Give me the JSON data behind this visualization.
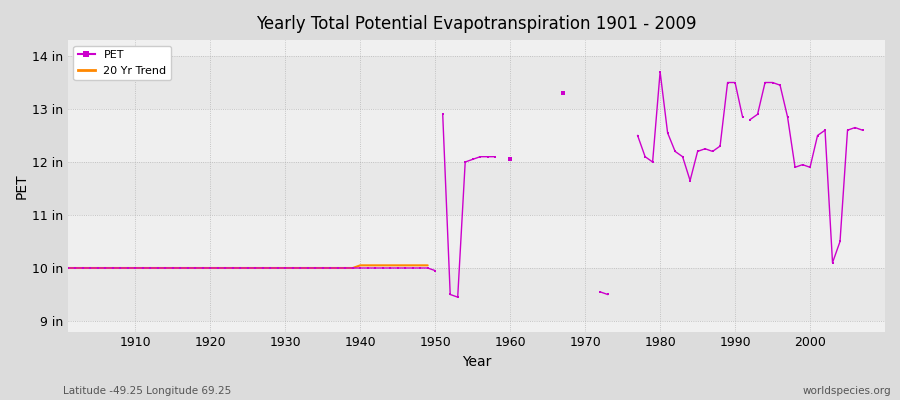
{
  "title": "Yearly Total Potential Evapotranspiration 1901 - 2009",
  "xlabel": "Year",
  "ylabel": "PET",
  "background_color": "#dcdcdc",
  "plot_bg_color": "#f0f0f0",
  "pet_color": "#cc00cc",
  "trend_color": "#ff8800",
  "xlim": [
    1901,
    2010
  ],
  "ylim": [
    8.8,
    14.3
  ],
  "yticks": [
    9,
    10,
    11,
    12,
    13,
    14
  ],
  "ytick_labels": [
    "9 in",
    "10 in",
    "11 in",
    "12 in",
    "13 in",
    "14 in"
  ],
  "xticks": [
    1910,
    1920,
    1930,
    1940,
    1950,
    1960,
    1970,
    1980,
    1990,
    2000
  ],
  "subtitle_lat_lon": "Latitude -49.25 Longitude 69.25",
  "watermark": "worldspecies.org",
  "band_colors": [
    "#e8e8e8",
    "#efefef",
    "#e8e8e8",
    "#efefef",
    "#e8e8e8"
  ],
  "pet_segments": [
    {
      "years": [
        1901,
        1902,
        1903,
        1904,
        1905,
        1906,
        1907,
        1908,
        1909,
        1910,
        1911,
        1912,
        1913,
        1914,
        1915,
        1916,
        1917,
        1918,
        1919,
        1920,
        1921,
        1922,
        1923,
        1924,
        1925,
        1926,
        1927,
        1928,
        1929,
        1930,
        1931,
        1932,
        1933,
        1934,
        1935,
        1936,
        1937,
        1938,
        1939,
        1940,
        1941,
        1942,
        1943,
        1944,
        1945,
        1946,
        1947,
        1948,
        1949,
        1950
      ],
      "values": [
        10.0,
        10.0,
        10.0,
        10.0,
        10.0,
        10.0,
        10.0,
        10.0,
        10.0,
        10.0,
        10.0,
        10.0,
        10.0,
        10.0,
        10.0,
        10.0,
        10.0,
        10.0,
        10.0,
        10.0,
        10.0,
        10.0,
        10.0,
        10.0,
        10.0,
        10.0,
        10.0,
        10.0,
        10.0,
        10.0,
        10.0,
        10.0,
        10.0,
        10.0,
        10.0,
        10.0,
        10.0,
        10.0,
        10.0,
        10.0,
        10.0,
        10.0,
        10.0,
        10.0,
        10.0,
        10.0,
        10.0,
        10.0,
        10.0,
        9.95
      ]
    },
    {
      "years": [
        1951,
        1952,
        1953,
        1954,
        1955,
        1956,
        1957,
        1958
      ],
      "values": [
        12.9,
        9.5,
        9.45,
        12.0,
        12.05,
        12.1,
        12.1,
        12.1
      ]
    },
    {
      "years": [
        1960
      ],
      "values": [
        12.05
      ]
    },
    {
      "years": [
        1967
      ],
      "values": [
        13.3
      ]
    },
    {
      "years": [
        1972,
        1973
      ],
      "values": [
        9.55,
        9.5
      ]
    },
    {
      "years": [
        1977,
        1978,
        1979,
        1980,
        1981,
        1982,
        1983,
        1984,
        1985,
        1986,
        1987,
        1988,
        1989,
        1990,
        1991
      ],
      "values": [
        12.5,
        12.1,
        12.0,
        13.7,
        12.55,
        12.2,
        12.1,
        11.65,
        12.2,
        12.25,
        12.2,
        12.3,
        13.5,
        13.5,
        12.85
      ]
    },
    {
      "years": [
        1992,
        1993,
        1994,
        1995,
        1996,
        1997,
        1998,
        1999,
        2000,
        2001,
        2002,
        2003,
        2004,
        2005,
        2006,
        2007
      ],
      "values": [
        12.8,
        12.9,
        13.5,
        13.5,
        13.45,
        12.85,
        11.9,
        11.95,
        11.9,
        12.5,
        12.6,
        10.1,
        10.5,
        12.6,
        12.65,
        12.6
      ]
    }
  ],
  "trend_years": [
    1901,
    1902,
    1903,
    1904,
    1905,
    1906,
    1907,
    1908,
    1909,
    1910,
    1911,
    1912,
    1913,
    1914,
    1915,
    1916,
    1917,
    1918,
    1919,
    1920,
    1921,
    1922,
    1923,
    1924,
    1925,
    1926,
    1927,
    1928,
    1929,
    1930,
    1931,
    1932,
    1933,
    1934,
    1935,
    1936,
    1937,
    1938,
    1939,
    1940,
    1941,
    1942,
    1943,
    1944,
    1945,
    1946,
    1947,
    1948,
    1949
  ],
  "trend_values": [
    10.0,
    10.0,
    10.0,
    10.0,
    10.0,
    10.0,
    10.0,
    10.0,
    10.0,
    10.0,
    10.0,
    10.0,
    10.0,
    10.0,
    10.0,
    10.0,
    10.0,
    10.0,
    10.0,
    10.0,
    10.0,
    10.0,
    10.0,
    10.0,
    10.0,
    10.0,
    10.0,
    10.0,
    10.0,
    10.0,
    10.0,
    10.0,
    10.0,
    10.0,
    10.0,
    10.0,
    10.0,
    10.0,
    10.0,
    10.05,
    10.05,
    10.05,
    10.05,
    10.05,
    10.05,
    10.05,
    10.05,
    10.05,
    10.05
  ]
}
